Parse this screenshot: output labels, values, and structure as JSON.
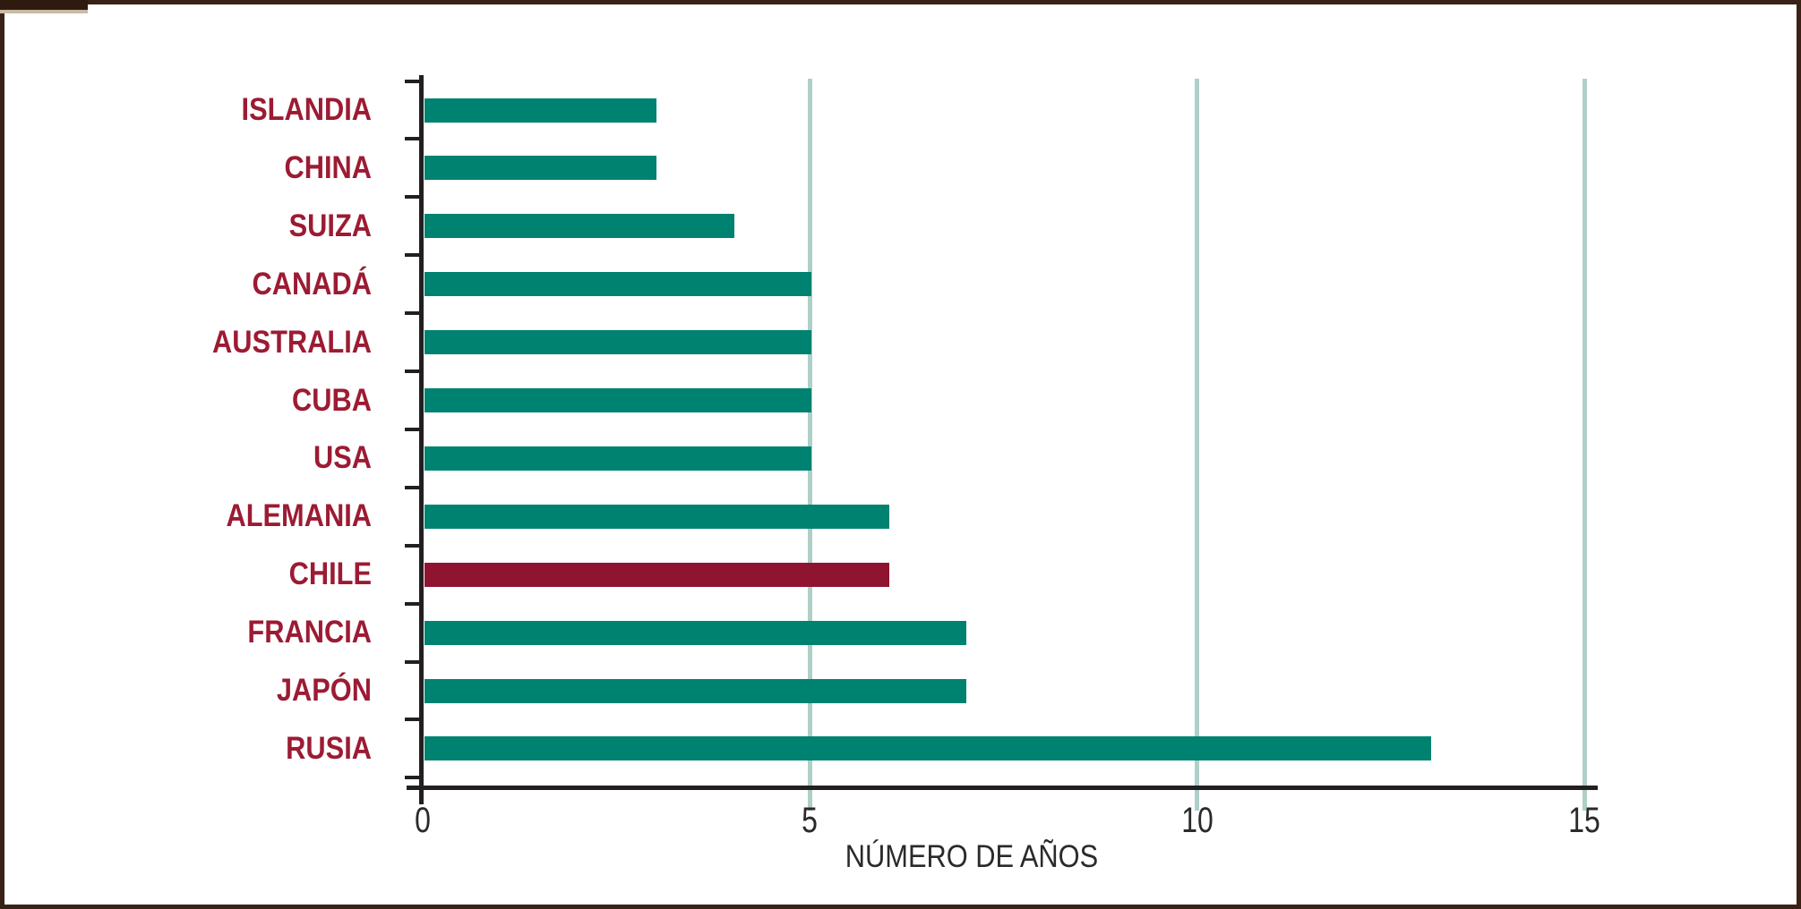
{
  "frame": {
    "background_color": "#ffffff",
    "border_color": "#3a2115"
  },
  "chart_data": {
    "type": "bar",
    "orientation": "horizontal",
    "title": "",
    "xlabel": "NÚMERO DE AÑOS",
    "ylabel": "",
    "categories": [
      "ISLANDIA",
      "CHINA",
      "SUIZA",
      "CANADÁ",
      "AUSTRALIA",
      "CUBA",
      "USA",
      "ALEMANIA",
      "CHILE",
      "FRANCIA",
      "JAPÓN",
      "RUSIA"
    ],
    "values": [
      3,
      3,
      4,
      5,
      5,
      5,
      5,
      6,
      6,
      7,
      7,
      13
    ],
    "highlighted_category": "CHILE",
    "xlim": [
      0,
      15
    ],
    "x_ticks": [
      0,
      5,
      10,
      15
    ],
    "x_tick_labels": [
      "0",
      "5",
      "10",
      "15"
    ],
    "gridlines_at": [
      5,
      10,
      15
    ],
    "legend": "none",
    "colors": {
      "bar": "#008270",
      "highlight_bar": "#8f142f",
      "category_label": "#9c1b33",
      "gridline": "#afcfc9",
      "axis": "#231f20",
      "tick_label": "#2a2a2a"
    }
  }
}
